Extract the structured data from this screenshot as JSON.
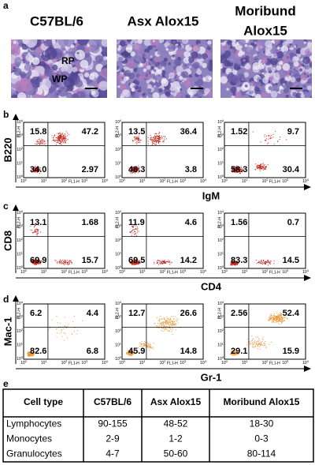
{
  "panel_labels": [
    "a",
    "b",
    "c",
    "d",
    "e"
  ],
  "column_titles": [
    [
      "C57BL/6"
    ],
    [
      "Asx Alox15"
    ],
    [
      "Moribund",
      "Alox15"
    ]
  ],
  "histology_labels": [
    "RP",
    "WP"
  ],
  "flow_axes": {
    "x_label": "FL1-H",
    "y_label": "FL2-H",
    "ticks": [
      {
        "base": "10",
        "exp": "0"
      },
      {
        "base": "10",
        "exp": "1"
      },
      {
        "base": "10",
        "exp": "2"
      },
      {
        "base": "10",
        "exp": "3"
      },
      {
        "base": "10",
        "exp": "4"
      }
    ]
  },
  "flow_rows": [
    {
      "y_label": "B220",
      "x_label": "IgM",
      "plots": [
        [
          "15.8",
          "47.2",
          "34.0",
          "2.97"
        ],
        [
          "13.5",
          "36.4",
          "46.3",
          "3.8"
        ],
        [
          "1.52",
          "9.7",
          "58.3",
          "30.4"
        ]
      ]
    },
    {
      "y_label": "CD8",
      "x_label": "CD4",
      "plots": [
        [
          "13.1",
          "1.68",
          "69.9",
          "15.7"
        ],
        [
          "11.9",
          "4.6",
          "69.5",
          "14.2"
        ],
        [
          "1.56",
          "0.7",
          "83.3",
          "14.5"
        ]
      ]
    },
    {
      "y_label": "Mac-1",
      "x_label": "Gr-1",
      "plots": [
        [
          "6.2",
          "4.4",
          "82.6",
          "6.8"
        ],
        [
          "12.7",
          "26.6",
          "45.9",
          "14.8"
        ],
        [
          "2.56",
          "52.4",
          "29.1",
          "15.9"
        ]
      ]
    }
  ],
  "table": {
    "header": [
      "Cell type",
      "C57BL/6",
      "Asx Alox15",
      "Moribund Alox15"
    ],
    "rows": [
      [
        "Lymphocytes",
        "90-155",
        "48-52",
        "18-30"
      ],
      [
        "Monocytes",
        "2-9",
        "1-2",
        "0-3"
      ],
      [
        "Granulocytes",
        "4-7",
        "50-60",
        "80-114"
      ]
    ]
  }
}
